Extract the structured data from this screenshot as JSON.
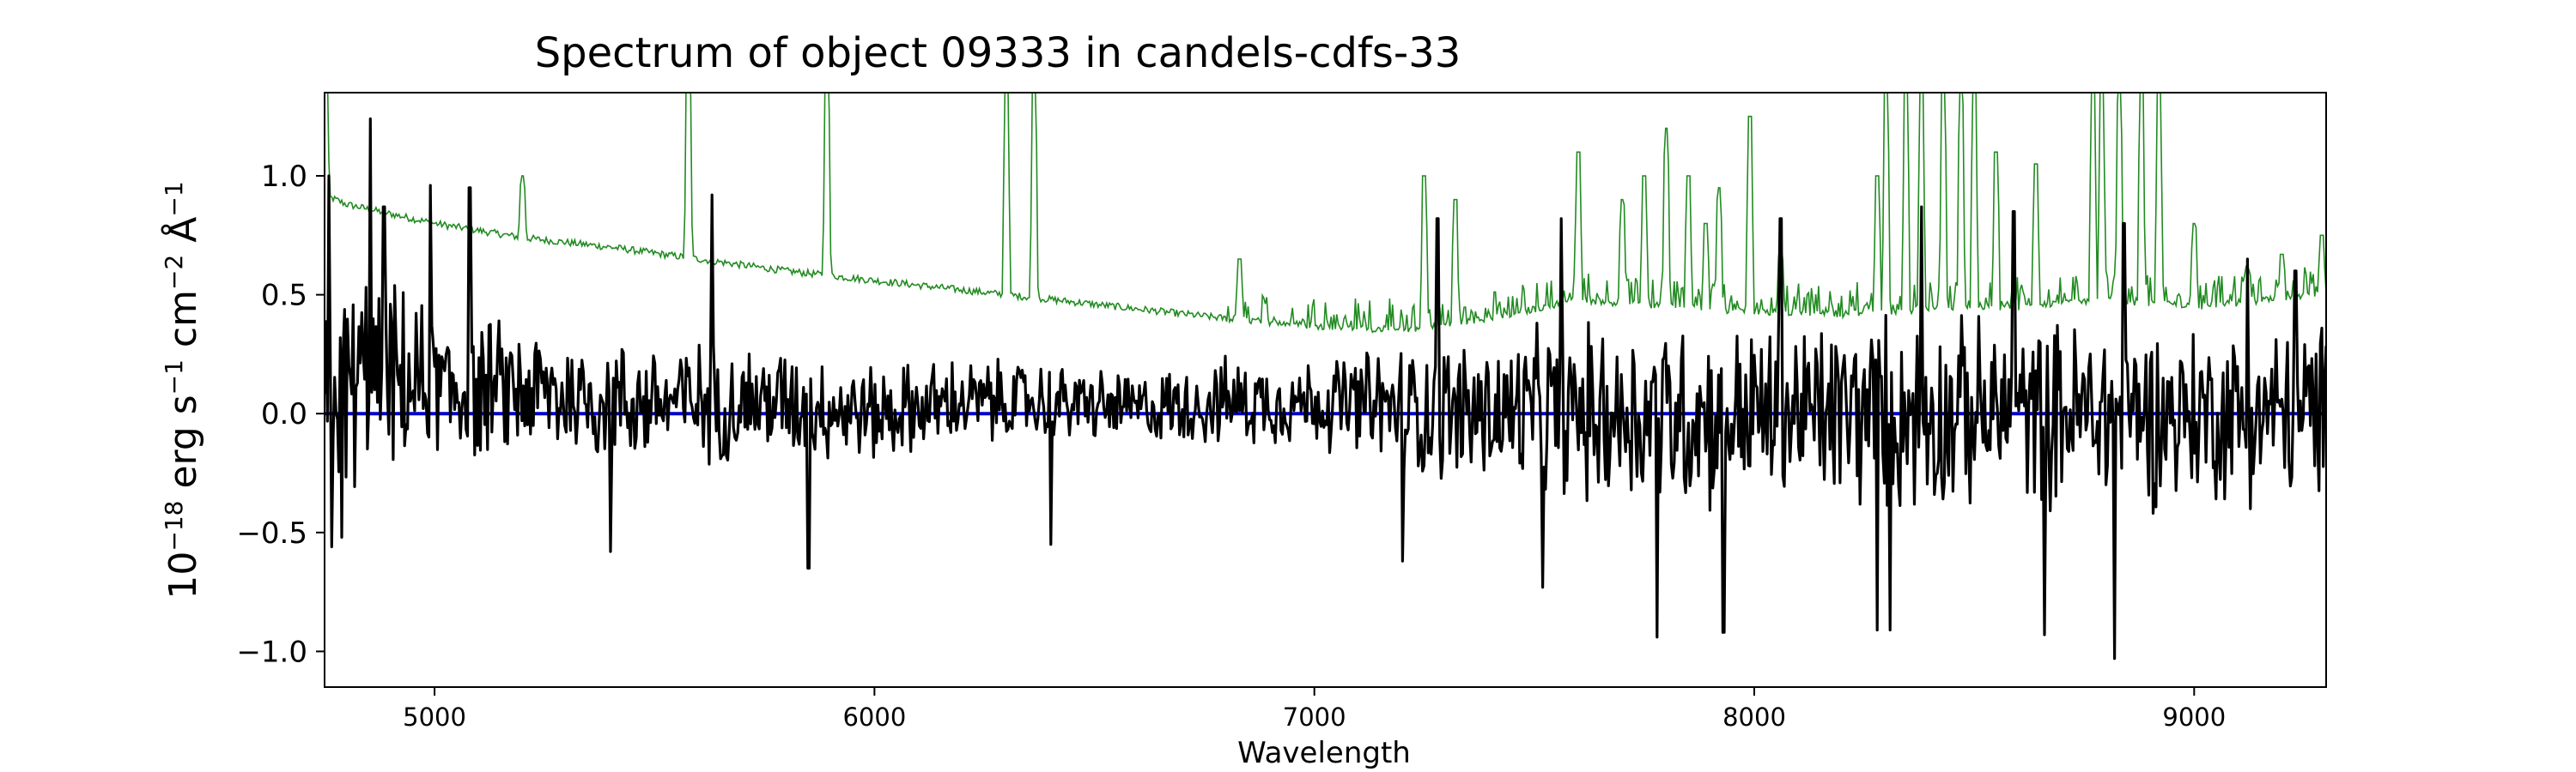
{
  "chart_data": {
    "type": "line",
    "title": "Spectrum of object 09333 in candels-cdfs-33",
    "xlabel": "Wavelength",
    "ylabel": {
      "base": "10",
      "exp": "−18",
      "unit1": " erg s",
      "exp1": "−1",
      "unit2": " cm",
      "exp2": "−2",
      "unit3": " Å",
      "exp3": "−1"
    },
    "xlim": [
      4750,
      9300
    ],
    "ylim": [
      -1.15,
      1.35
    ],
    "xticks": [
      5000,
      6000,
      7000,
      8000,
      9000
    ],
    "xtick_labels": [
      "5000",
      "6000",
      "7000",
      "8000",
      "9000"
    ],
    "yticks": [
      -1.0,
      -0.5,
      0.0,
      0.5,
      1.0
    ],
    "ytick_labels": [
      "−1.0",
      "−0.5",
      "0.0",
      "0.5",
      "1.0"
    ],
    "grid": false,
    "colors": {
      "flux": "#000000",
      "error": "#228B22",
      "zero": "#0000CD"
    },
    "series": [
      {
        "role": "flux",
        "style": "noisy",
        "x": [
          4750,
          4850,
          5000,
          5200,
          5400,
          5600,
          5800,
          6000,
          6200,
          6400,
          6600,
          6800,
          7000,
          7200,
          7400,
          7600,
          7800,
          8000,
          8200,
          8400,
          8600,
          8800,
          9000,
          9300
        ],
        "y": [
          0.05,
          0.15,
          0.1,
          0.1,
          0.05,
          0.05,
          0.05,
          0.0,
          0.05,
          0.05,
          0.02,
          0.05,
          0.05,
          0.02,
          0.0,
          0.0,
          0.0,
          0.0,
          0.0,
          0.0,
          0.0,
          0.0,
          0.0,
          0.0
        ],
        "amplitude": [
          0.45,
          0.5,
          0.35,
          0.3,
          0.28,
          0.28,
          0.25,
          0.22,
          0.2,
          0.18,
          0.16,
          0.2,
          0.2,
          0.3,
          0.35,
          0.4,
          0.45,
          0.42,
          0.45,
          0.45,
          0.4,
          0.45,
          0.4,
          0.4
        ],
        "spikes": [
          [
            4760,
            1.0
          ],
          [
            4765,
            -0.56
          ],
          [
            4790,
            -0.52
          ],
          [
            4855,
            1.24
          ],
          [
            4885,
            0.87
          ],
          [
            4990,
            0.96
          ],
          [
            5080,
            0.95
          ],
          [
            5400,
            -0.58
          ],
          [
            5630,
            0.92
          ],
          [
            5850,
            -0.65
          ],
          [
            6400,
            -0.55
          ],
          [
            7200,
            -0.62
          ],
          [
            7280,
            0.82
          ],
          [
            7520,
            -0.73
          ],
          [
            7560,
            0.82
          ],
          [
            7780,
            -0.94
          ],
          [
            7930,
            -0.92
          ],
          [
            8060,
            0.82
          ],
          [
            8280,
            -0.91
          ],
          [
            8310,
            -0.91
          ],
          [
            8380,
            0.87
          ],
          [
            8590,
            0.85
          ],
          [
            8660,
            -0.93
          ],
          [
            8820,
            -1.03
          ],
          [
            8840,
            0.8
          ],
          [
            9120,
            0.65
          ],
          [
            9230,
            0.6
          ]
        ]
      },
      {
        "role": "error",
        "style": "smooth-with-lines",
        "x": [
          4750,
          4800,
          5000,
          5200,
          5400,
          5600,
          5800,
          6000,
          6200,
          6400,
          6600,
          6800,
          7000,
          7200,
          7400,
          7600,
          7800,
          8000,
          8200,
          8400,
          8600,
          8800,
          9000,
          9300
        ],
        "y": [
          0.92,
          0.88,
          0.8,
          0.74,
          0.7,
          0.65,
          0.6,
          0.56,
          0.52,
          0.48,
          0.44,
          0.4,
          0.37,
          0.35,
          0.4,
          0.48,
          0.45,
          0.43,
          0.42,
          0.44,
          0.45,
          0.48,
          0.45,
          0.5
        ],
        "emission_lines": [
          [
            4752,
            1.5
          ],
          [
            5200,
            1.0
          ],
          [
            5577,
            1.6
          ],
          [
            5892,
            1.5
          ],
          [
            6300,
            1.4
          ],
          [
            6363,
            1.4
          ],
          [
            6830,
            0.65
          ],
          [
            7250,
            1.0
          ],
          [
            7320,
            0.9
          ],
          [
            7600,
            1.1
          ],
          [
            7700,
            0.9
          ],
          [
            7750,
            1.0
          ],
          [
            7800,
            1.2
          ],
          [
            7850,
            1.0
          ],
          [
            7890,
            0.8
          ],
          [
            7920,
            0.95
          ],
          [
            7990,
            1.25
          ],
          [
            8060,
            0.7
          ],
          [
            8280,
            1.0
          ],
          [
            8300,
            1.4
          ],
          [
            8345,
            1.4
          ],
          [
            8380,
            1.4
          ],
          [
            8430,
            1.4
          ],
          [
            8470,
            1.4
          ],
          [
            8500,
            1.4
          ],
          [
            8550,
            1.1
          ],
          [
            8640,
            1.05
          ],
          [
            8770,
            1.4
          ],
          [
            8790,
            1.4
          ],
          [
            8830,
            1.4
          ],
          [
            8880,
            1.4
          ],
          [
            8920,
            1.4
          ],
          [
            9000,
            0.8
          ],
          [
            9120,
            0.62
          ],
          [
            9200,
            0.67
          ],
          [
            9290,
            0.75
          ]
        ]
      },
      {
        "role": "zero",
        "style": "flat",
        "x": [
          4750,
          9300
        ],
        "y": [
          0.0,
          0.0
        ]
      }
    ]
  }
}
